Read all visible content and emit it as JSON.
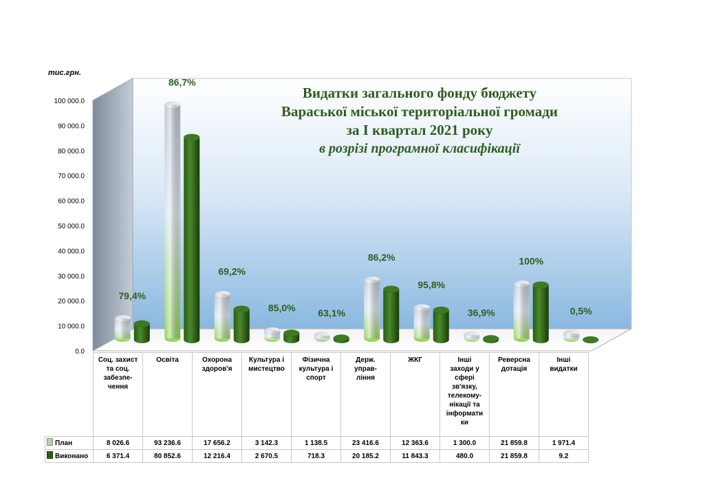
{
  "page": {
    "unit_label": "тис.грн.",
    "title_lines": [
      "Видатки загального фонду бюджету",
      "Вараської міської територіальної громади",
      "за І квартал 2021 року"
    ],
    "subtitle": "в розрізі програмної класифікації"
  },
  "chart_data": {
    "type": "bar",
    "ylim": [
      0,
      100000
    ],
    "yticks": [
      "0.0",
      "10 000.0",
      "20 000.0",
      "30 000.0",
      "40 000.0",
      "50 000.0",
      "60 000.0",
      "70 000.0",
      "80 000.0",
      "90 000.0",
      "100 000.0"
    ],
    "ytick_values": [
      0,
      10000,
      20000,
      30000,
      40000,
      50000,
      60000,
      70000,
      80000,
      90000,
      100000
    ],
    "categories": [
      "Соц. захист та соц. забезпе-чення",
      "Освіта",
      "Охорона здоров'я",
      "Культура і мистецтво",
      "Фізична культура і спорт",
      "Держ. управ-ління",
      "ЖКГ",
      "Інші заходи у сфері зв'язку, телекому-нікації та інформатики",
      "Реверсна дотація",
      "Інші видатки"
    ],
    "category_lines": [
      [
        "Соц. захист",
        "та соц.",
        "забезпе-",
        "чення"
      ],
      [
        "Освіта"
      ],
      [
        "Охорона",
        "здоров'я"
      ],
      [
        "Культура і",
        "мистецтво"
      ],
      [
        "Фізична",
        "культура і",
        "спорт"
      ],
      [
        "Держ.",
        "управ-",
        "ління"
      ],
      [
        "ЖКГ"
      ],
      [
        "Інші",
        "заходи у",
        "сфері",
        "зв'язку,",
        "телекому-",
        "нікації та",
        "інформати",
        "ки"
      ],
      [
        "Реверсна",
        "дотація"
      ],
      [
        "Інші",
        "видатки"
      ]
    ],
    "series": [
      {
        "name": "План",
        "values": [
          8026.6,
          93236.6,
          17656.2,
          3142.3,
          1138.5,
          23416.6,
          12363.6,
          1300.0,
          21859.8,
          1971.4
        ],
        "labels": [
          "8 026.6",
          "93 236.6",
          "17 656.2",
          "3 142.3",
          "1 138.5",
          "23 416.6",
          "12 363.6",
          "1 300.0",
          "21 859.8",
          "1 971.4"
        ]
      },
      {
        "name": "Виконано",
        "values": [
          6371.4,
          80852.6,
          12216.4,
          2670.5,
          718.3,
          20185.2,
          11843.3,
          480.0,
          21859.8,
          9.2
        ],
        "labels": [
          "6 371.4",
          "80 852.6",
          "12 216.4",
          "2 670.5",
          "718.3",
          "20 185.2",
          "11 843.3",
          "480.0",
          "21 859.8",
          "9.2"
        ]
      }
    ],
    "percent_labels": [
      "79,4%",
      "86,7%",
      "69,2%",
      "85,0%",
      "63,1%",
      "86,2%",
      "95,8%",
      "36,9%",
      "100%",
      "0,5%"
    ],
    "colors": {
      "plan_top": "#c4cad6",
      "plan_bottom": "#9ad060",
      "done_light": "#3f7a22",
      "done_dark": "#1c3d0c",
      "percent_text": "#2f5d20",
      "wall_top": "#ffffff",
      "wall_bottom": "#7fb0dc"
    },
    "legend": "in-table"
  }
}
